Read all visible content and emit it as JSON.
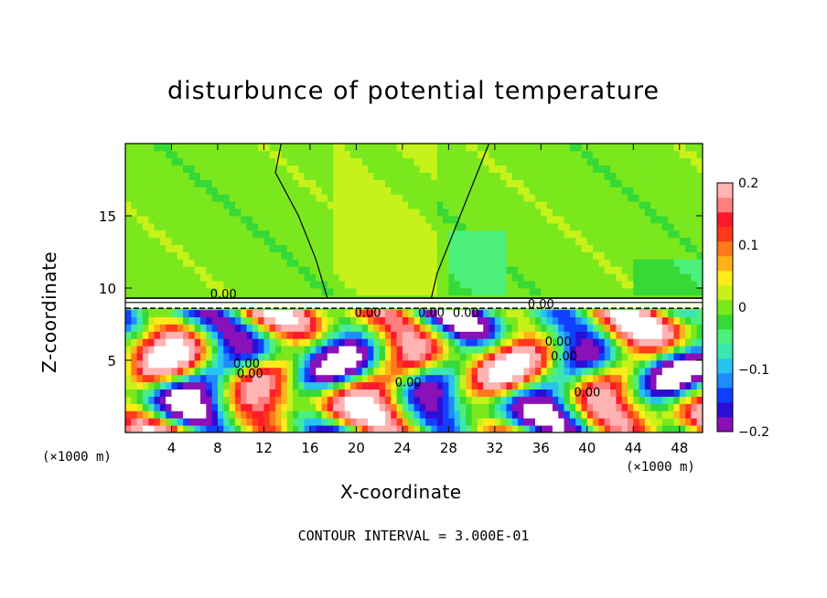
{
  "chart_data": {
    "type": "heatmap",
    "title": "disturbunce of potential temperature",
    "xlabel": "X-coordinate",
    "ylabel": "Z-coordinate",
    "x_unit": "(×1000 m)",
    "footer": "CONTOUR INTERVAL = 3.000E-01",
    "xlim": [
      0,
      50
    ],
    "ylim": [
      0,
      20
    ],
    "x_ticks": [
      4,
      8,
      12,
      16,
      20,
      24,
      28,
      32,
      36,
      40,
      44,
      48
    ],
    "y_ticks": [
      5,
      10,
      15
    ],
    "colorbar": {
      "range": [
        -0.2,
        0.2
      ],
      "tick_values": [
        0.2,
        0.1,
        0,
        -0.1,
        -0.2
      ],
      "tick_labels": [
        "0.2",
        "0.1",
        "0",
        "−0.1",
        "−0.2"
      ],
      "colors": [
        "#8a10b8",
        "#2b0fd6",
        "#1040ff",
        "#1f8cff",
        "#26c3f0",
        "#3ce6b0",
        "#4cf07a",
        "#36d936",
        "#7be81e",
        "#c6f21a",
        "#ffea1a",
        "#ffb21a",
        "#ff7a1a",
        "#ff3a1a",
        "#ff1a2a",
        "#ff7f7f",
        "#ffb3b3"
      ]
    },
    "contour_labels": [
      "0.00",
      "0.00",
      "0.00",
      "0.00",
      "0.00",
      "0.00",
      "0.00",
      "0.00",
      "0.00",
      "0.00",
      "0.00"
    ]
  }
}
